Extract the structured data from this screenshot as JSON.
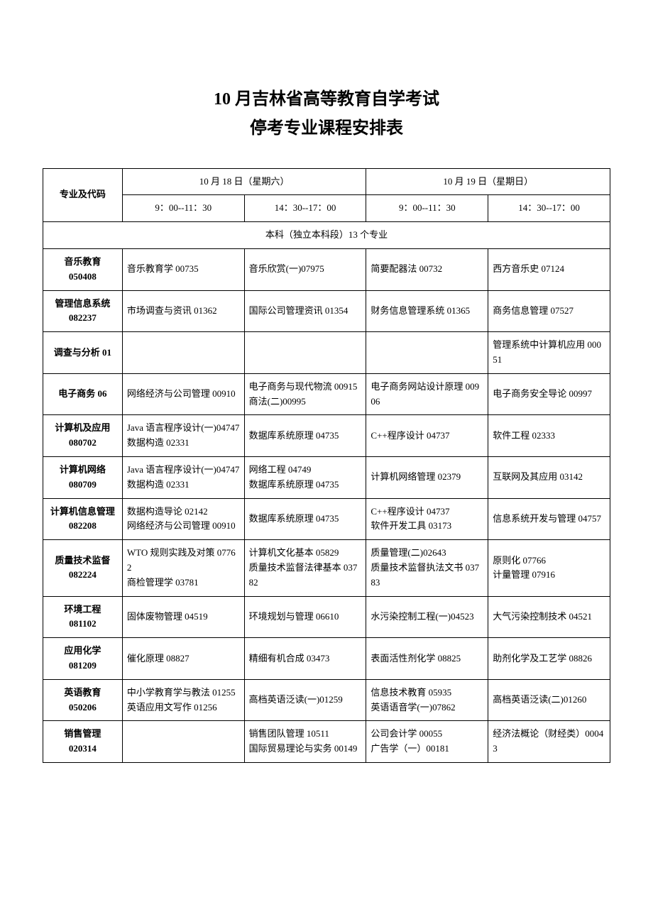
{
  "title": {
    "line1": "10 月吉林省高等教育自学考试",
    "line2": "停考专业课程安排表"
  },
  "header": {
    "major_label": "专业及代码",
    "date1": "10 月 18 日（星期六）",
    "date2": "10 月 19 日（星期日）",
    "time1": "9：00--11：30",
    "time2": "14：30--17：00",
    "time3": "9：00--11：30",
    "time4": "14：30--17：00"
  },
  "section_header": "本科（独立本科段）13 个专业",
  "rows": [
    {
      "major": "音乐教育\n050408",
      "c1": "音乐教育学 00735",
      "c2": "音乐欣赏(一)07975",
      "c3": "简要配器法 00732",
      "c4": "西方音乐史 07124"
    },
    {
      "major": "管理信息系统\n082237",
      "c1": "市场调查与资讯 01362",
      "c2": "国际公司管理资讯 01354",
      "c3": "财务信息管理系统 01365",
      "c4": "商务信息管理 07527"
    },
    {
      "major": "调查与分析 01",
      "c1": "",
      "c2": "",
      "c3": "",
      "c4": "管理系统中计算机应用 00051"
    },
    {
      "major": "电子商务 06",
      "c1": "网络经济与公司管理 00910",
      "c2": "电子商务与现代物流 00915\n商法(二)00995",
      "c3": "电子商务网站设计原理 00906",
      "c4": "电子商务安全导论 00997"
    },
    {
      "major": "计算机及应用\n080702",
      "c1": "Java 语言程序设计(一)04747\n数据构造 02331",
      "c2": "数据库系统原理 04735",
      "c3": "C++程序设计 04737",
      "c4": "软件工程 02333"
    },
    {
      "major": "计算机网络\n080709",
      "c1": "Java 语言程序设计(一)04747\n数据构造 02331",
      "c2": "网络工程 04749\n数据库系统原理 04735",
      "c3": "计算机网络管理 02379",
      "c4": "互联网及其应用 03142"
    },
    {
      "major": "计算机信息管理 082208",
      "c1": "数据构造导论 02142\n网络经济与公司管理 00910",
      "c2": "数据库系统原理 04735",
      "c3": "C++程序设计 04737\n软件开发工具 03173",
      "c4": "信息系统开发与管理 04757"
    },
    {
      "major": "质量技术监督\n082224",
      "c1": "WTO 规则实践及对策 07762\n商检管理学 03781",
      "c2": "计算机文化基本 05829\n质量技术监督法律基本 03782",
      "c3": "质量管理(二)02643\n质量技术监督执法文书 03783",
      "c4": "原则化 07766\n计量管理 07916"
    },
    {
      "major": "环境工程\n081102",
      "c1": "固体废物管理 04519",
      "c2": "环境规划与管理 06610",
      "c3": "水污染控制工程(一)04523",
      "c4": "大气污染控制技术 04521"
    },
    {
      "major": "应用化学\n081209",
      "c1": "催化原理 08827",
      "c2": "精细有机合成 03473",
      "c3": "表面活性剂化学 08825",
      "c4": "助剂化学及工艺学 08826"
    },
    {
      "major": "英语教育\n050206",
      "c1": "中小学教育学与教法 01255\n英语应用文写作 01256",
      "c2": "高档英语泛读(一)01259",
      "c3": "信息技术教育 05935\n英语语音学(一)07862",
      "c4": "高档英语泛读(二)01260"
    },
    {
      "major": "销售管理\n020314",
      "c1": "",
      "c2": "销售团队管理 10511\n国际贸易理论与实务 00149",
      "c3": "公司会计学 00055\n广告学（一）00181",
      "c4": "经济法概论（财经类）00043"
    }
  ]
}
